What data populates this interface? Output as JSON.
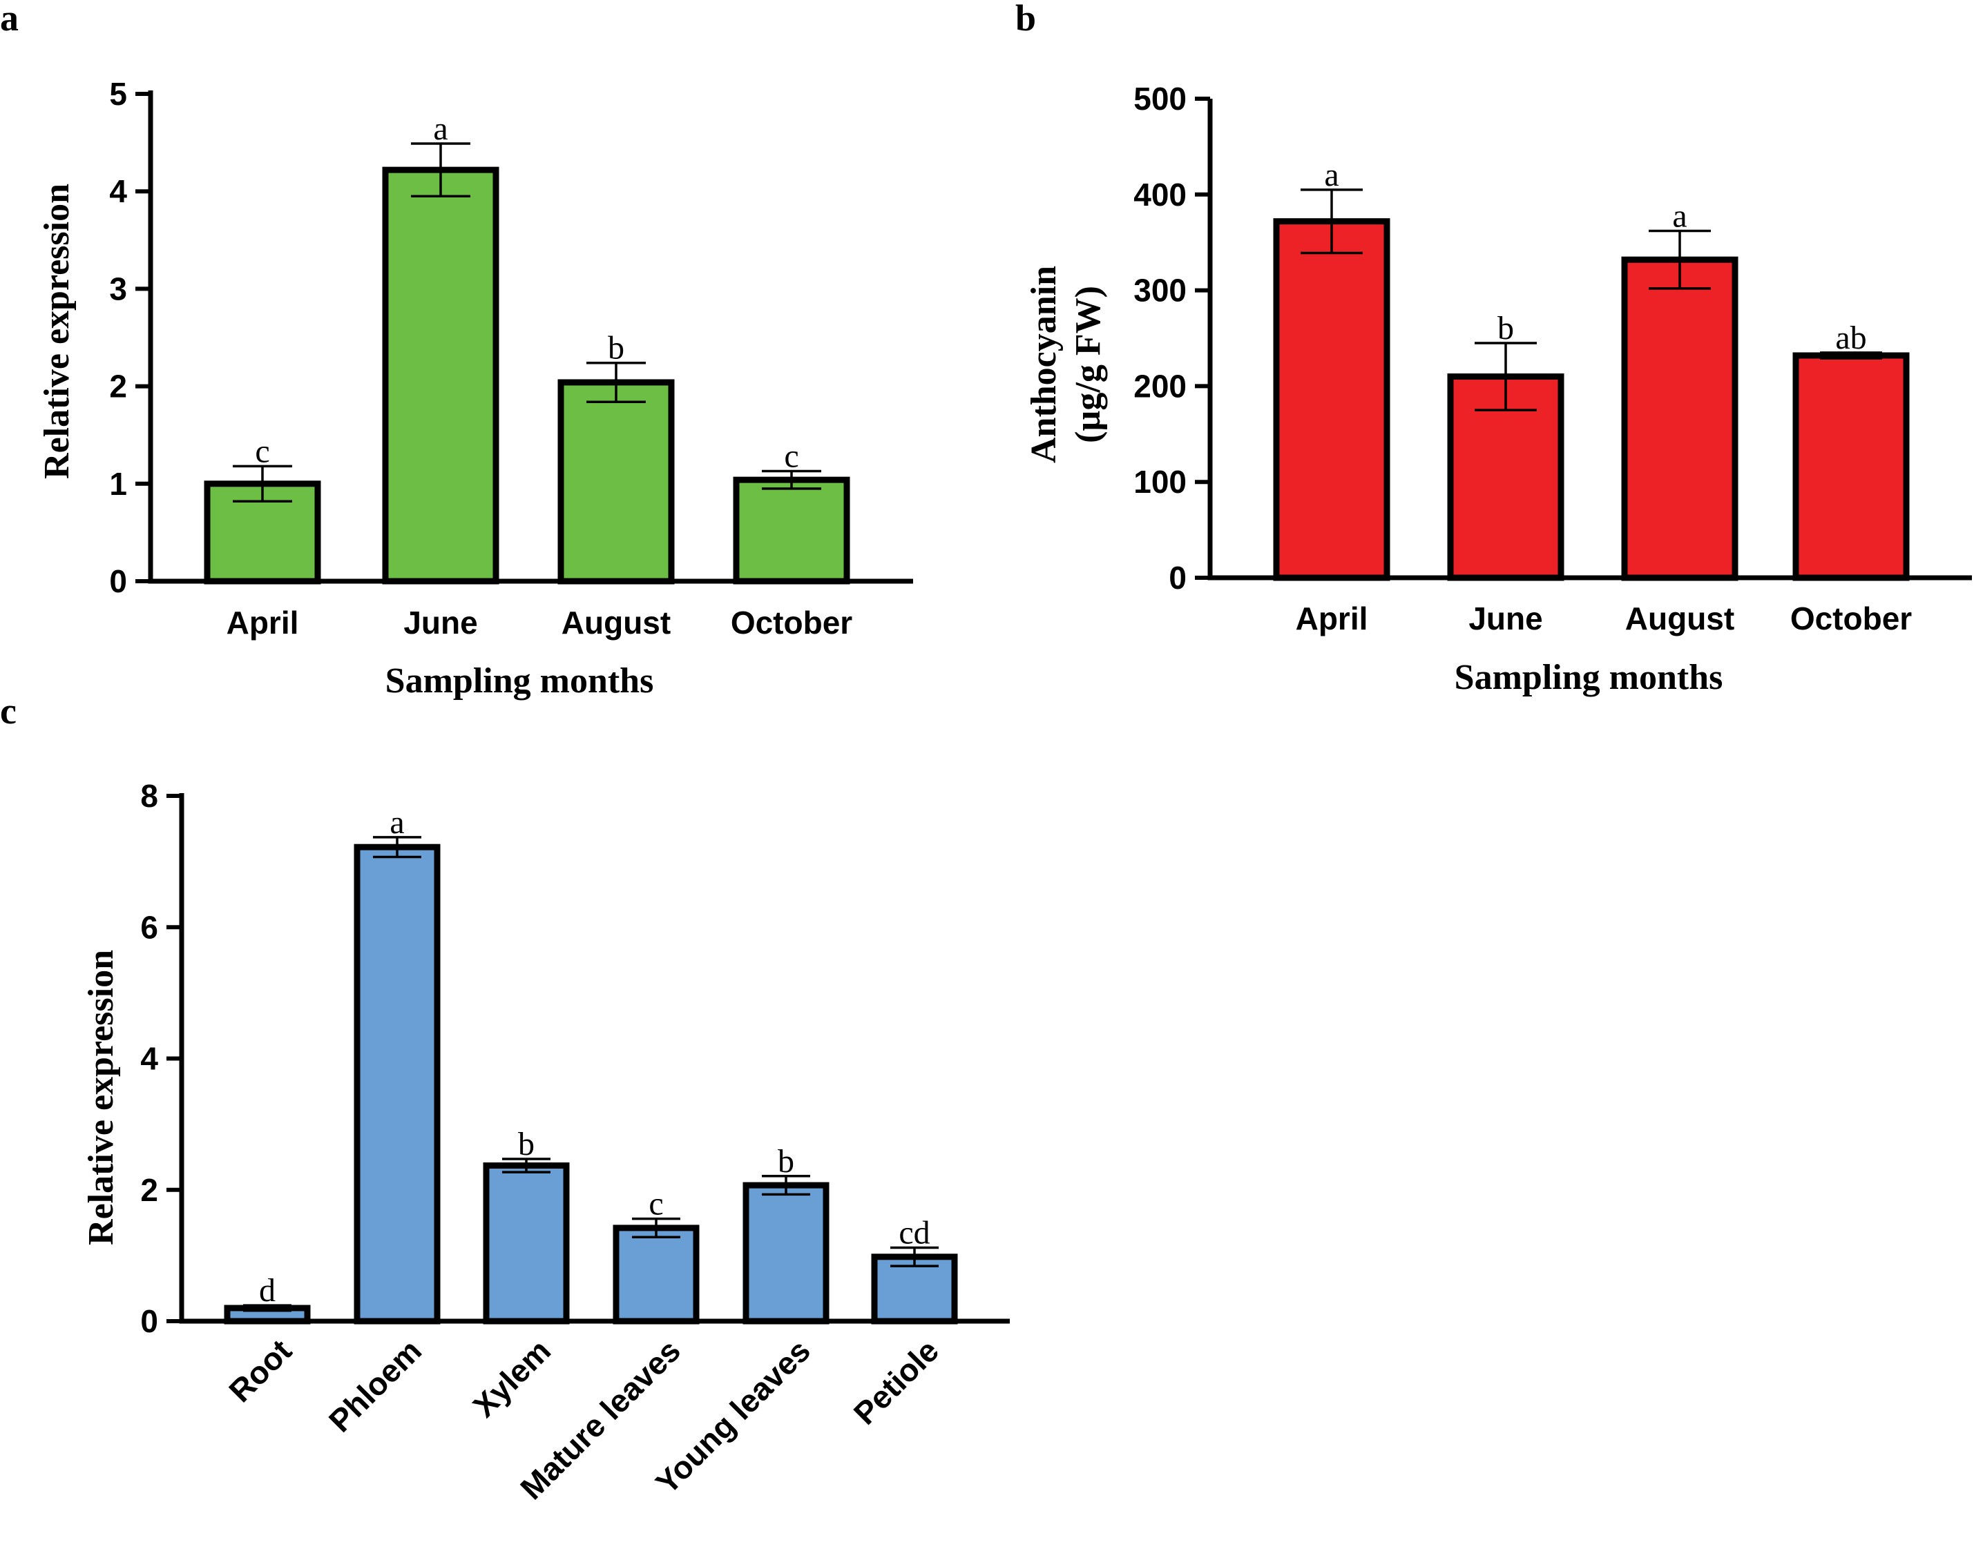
{
  "chart_data": [
    {
      "panel": "a",
      "type": "bar",
      "categories": [
        "April",
        "June",
        "August",
        "October"
      ],
      "values": [
        1.0,
        4.22,
        2.04,
        1.04
      ],
      "errors": [
        0.18,
        0.27,
        0.2,
        0.09
      ],
      "significance": [
        "c",
        "a",
        "b",
        "c"
      ],
      "xlabel": "Sampling months",
      "ylabel": "Relative expression",
      "ylim": [
        0,
        5
      ],
      "yticks": [
        "0",
        "1",
        "2",
        "3",
        "4",
        "5"
      ],
      "bar_color": "#6cbe45"
    },
    {
      "panel": "b",
      "type": "bar",
      "categories": [
        "April",
        "June",
        "August",
        "October"
      ],
      "values": [
        372,
        210,
        332,
        232
      ],
      "errors": [
        33,
        35,
        30,
        3
      ],
      "significance": [
        "a",
        "b",
        "a",
        "ab"
      ],
      "xlabel": "Sampling months",
      "ylabel": [
        "Anthocyanin",
        "(µg/g FW)"
      ],
      "ylim": [
        0,
        500
      ],
      "yticks": [
        "0",
        "100",
        "200",
        "300",
        "400",
        "500"
      ],
      "bar_color": "#ec2227"
    },
    {
      "panel": "c",
      "type": "bar",
      "categories": [
        "Root",
        "Phloem",
        "Xylem",
        "Mature leaves",
        "Young leaves",
        "Petiole"
      ],
      "values": [
        0.2,
        7.22,
        2.37,
        1.42,
        2.07,
        0.98
      ],
      "errors": [
        0.04,
        0.15,
        0.1,
        0.14,
        0.14,
        0.14
      ],
      "significance": [
        "d",
        "a",
        "b",
        "c",
        "b",
        "cd"
      ],
      "xlabel": "",
      "ylabel": "Relative expression",
      "ylim": [
        0,
        8
      ],
      "yticks": [
        "0",
        "2",
        "4",
        "6",
        "8"
      ],
      "bar_color": "#6a9fd6"
    }
  ]
}
